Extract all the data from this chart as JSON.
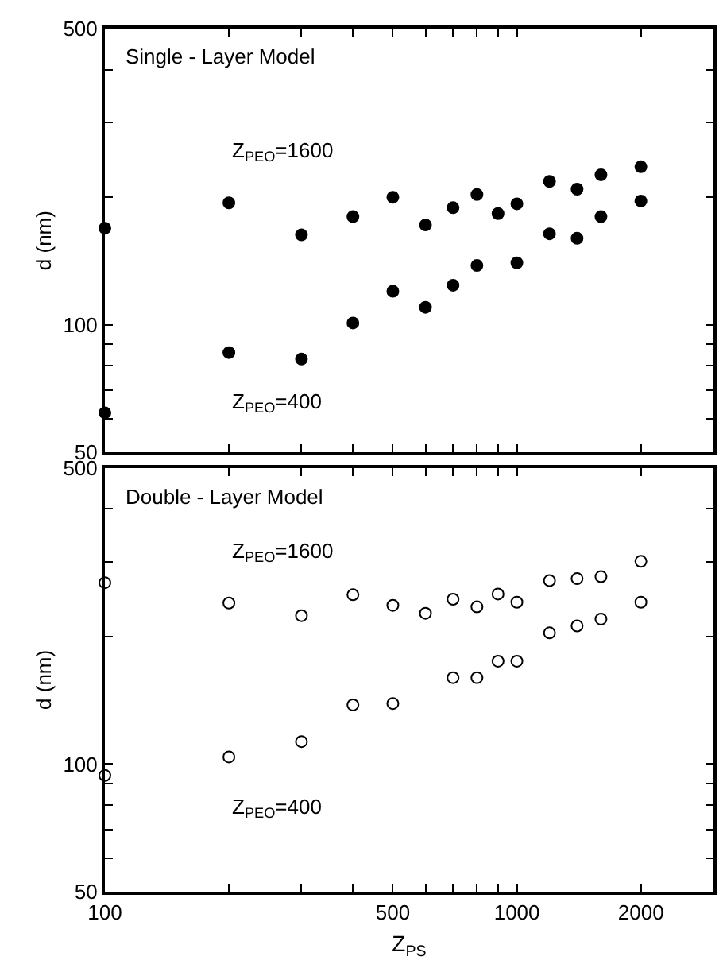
{
  "chart_data": [
    {
      "type": "scatter",
      "title": "Single - Layer Model",
      "ylabel": "d (nm)",
      "log": "xy",
      "marker": "circle",
      "legend": false,
      "tick_labels": "y",
      "x": [
        100,
        200,
        300,
        400,
        500,
        600,
        700,
        800,
        900,
        1000,
        1200,
        1400,
        1600,
        2000
      ],
      "xlim": [
        100,
        3000
      ],
      "xticks": [
        100,
        {
          "value": 200,
          "label": null
        },
        {
          "value": 300,
          "label": null
        },
        {
          "value": 400,
          "label": null
        },
        500,
        {
          "value": 600,
          "label": null
        },
        {
          "value": 700,
          "label": null
        },
        {
          "value": 800,
          "label": null
        },
        {
          "value": 900,
          "label": null
        },
        1000,
        2000
      ],
      "ylim": [
        50,
        500
      ],
      "yticks": [
        50,
        {
          "value": 60,
          "label": null
        },
        {
          "value": 70,
          "label": null
        },
        {
          "value": 80,
          "label": null
        },
        {
          "value": 90,
          "label": null
        },
        100,
        {
          "value": 200,
          "label": null
        },
        {
          "value": 300,
          "label": null
        },
        {
          "value": 400,
          "label": null
        },
        500
      ],
      "series": [
        {
          "name": "Z$_{PEO}$=1600",
          "color": "#000000",
          "values": [
            169,
            194,
            163,
            180,
            200,
            172,
            189,
            203,
            183,
            193,
            218,
            209,
            226,
            236
          ]
        },
        {
          "name": "Z$_{PEO}$=400",
          "color": "#000000",
          "values": [
            62,
            86,
            83,
            101,
            120,
            110,
            124,
            138,
            null,
            140,
            164,
            160,
            180,
            196
          ]
        }
      ]
    },
    {
      "type": "scatter",
      "title": "Double - Layer Model",
      "ylabel": "d (nm)",
      "xlabel": "Z$_{PS}$",
      "log": "xy",
      "marker": "circle",
      "legend": false,
      "x": [
        100,
        200,
        300,
        400,
        500,
        600,
        700,
        800,
        900,
        1000,
        1200,
        1400,
        1600,
        2000
      ],
      "xlim": [
        100,
        3000
      ],
      "xticks": [
        100,
        {
          "value": 200,
          "label": null
        },
        {
          "value": 300,
          "label": null
        },
        {
          "value": 400,
          "label": null
        },
        500,
        {
          "value": 600,
          "label": null
        },
        {
          "value": 700,
          "label": null
        },
        {
          "value": 800,
          "label": null
        },
        {
          "value": 900,
          "label": null
        },
        1000,
        2000
      ],
      "ylim": [
        50,
        500
      ],
      "yticks": [
        50,
        {
          "value": 60,
          "label": null
        },
        {
          "value": 70,
          "label": null
        },
        {
          "value": 80,
          "label": null
        },
        {
          "value": 90,
          "label": null
        },
        100,
        {
          "value": 200,
          "label": null
        },
        {
          "value": 300,
          "label": null
        },
        {
          "value": 400,
          "label": null
        },
        500
      ],
      "series": [
        {
          "name": "Z$_{PEO}$=1600",
          "color": "#ffffff",
          "values": [
            268,
            240,
            224,
            251,
            237,
            227,
            245,
            235,
            252,
            241,
            271,
            274,
            277,
            301
          ]
        },
        {
          "name": "Z$_{PEO}$=400",
          "color": "#ffffff",
          "values": [
            94,
            104,
            113,
            138,
            139,
            null,
            160,
            160,
            175,
            175,
            204,
            212,
            220,
            241
          ]
        }
      ]
    }
  ]
}
